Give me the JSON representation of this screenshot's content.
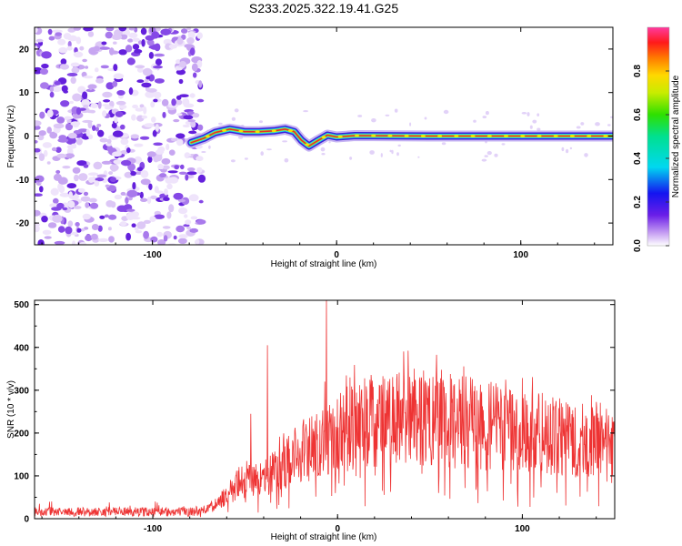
{
  "chart_data": [
    {
      "type": "heatmap",
      "title": "S233.2025.322.19.41.G25",
      "xlabel": "Height of straight line (km)",
      "ylabel": "Frequency (Hz)",
      "xlim": [
        -164,
        150
      ],
      "ylim": [
        -25,
        25
      ],
      "xticks": [
        -100,
        0,
        100
      ],
      "yticks": [
        -20,
        -10,
        0,
        10,
        20
      ],
      "tick_labels_x": [
        "-100",
        "0",
        "100"
      ],
      "tick_labels_y": [
        "-20",
        "-10",
        "0",
        "10",
        "20"
      ],
      "noise_region_x": [
        -164,
        -73
      ],
      "ridge": [
        {
          "x": -79,
          "y": -1.5
        },
        {
          "x": -72,
          "y": -0.5
        },
        {
          "x": -66,
          "y": 0.8
        },
        {
          "x": -58,
          "y": 1.6
        },
        {
          "x": -50,
          "y": 1.0
        },
        {
          "x": -42,
          "y": 1.0
        },
        {
          "x": -34,
          "y": 1.2
        },
        {
          "x": -28,
          "y": 1.6
        },
        {
          "x": -23,
          "y": 1.0
        },
        {
          "x": -19,
          "y": -1.0
        },
        {
          "x": -15,
          "y": -2.3
        },
        {
          "x": -10,
          "y": -1.0
        },
        {
          "x": -5,
          "y": 0.2
        },
        {
          "x": 0,
          "y": -0.2
        },
        {
          "x": 10,
          "y": 0.1
        },
        {
          "x": 50,
          "y": 0.0
        },
        {
          "x": 100,
          "y": 0.0
        },
        {
          "x": 150,
          "y": 0.0
        }
      ],
      "colorbar": {
        "label": "Normalized spectral amplitude",
        "range": [
          0,
          1
        ],
        "ticks": [
          0.0,
          0.2,
          0.4,
          0.6,
          0.8
        ],
        "tick_labels": [
          "0.0",
          "0.2",
          "0.4",
          "0.6",
          "0.8"
        ]
      },
      "colors": {
        "noise": "#7a2ee6",
        "ridge_core": "#e4302a",
        "ridge_edge": "#20d8e8",
        "ridge_halo": "#3a1fd8"
      }
    },
    {
      "type": "line",
      "title": "",
      "xlabel": "Height of straight line (km)",
      "ylabel": "SNR (10 * v/v)",
      "xlim": [
        -164,
        150
      ],
      "ylim": [
        0,
        510
      ],
      "xticks": [
        -100,
        0,
        100
      ],
      "yticks": [
        0,
        100,
        200,
        300,
        400,
        500
      ],
      "tick_labels_x": [
        "-100",
        "0",
        "100"
      ],
      "tick_labels_y": [
        "0",
        "100",
        "200",
        "300",
        "400",
        "500"
      ],
      "series": [
        {
          "name": "SNR",
          "color": "#ee3333",
          "envelope": {
            "x": [
              -164,
              -80,
              -70,
              -60,
              -52,
              -45,
              -40,
              -35,
              -30,
              -25,
              -20,
              -15,
              -10,
              -5,
              0,
              10,
              20,
              30,
              40,
              50,
              60,
              80,
              100,
              120,
              140,
              150
            ],
            "y": [
              18,
              18,
              25,
              60,
              100,
              110,
              115,
              120,
              140,
              170,
              185,
              190,
              200,
              220,
              230,
              250,
              268,
              272,
              272,
              270,
              262,
              250,
              235,
              220,
              200,
              180
            ]
          },
          "spikes": [
            {
              "x": -47,
              "y": 245
            },
            {
              "x": -38,
              "y": 405
            },
            {
              "x": -6,
              "y": 510
            },
            {
              "x": -7,
              "y": 320
            }
          ]
        }
      ]
    }
  ]
}
